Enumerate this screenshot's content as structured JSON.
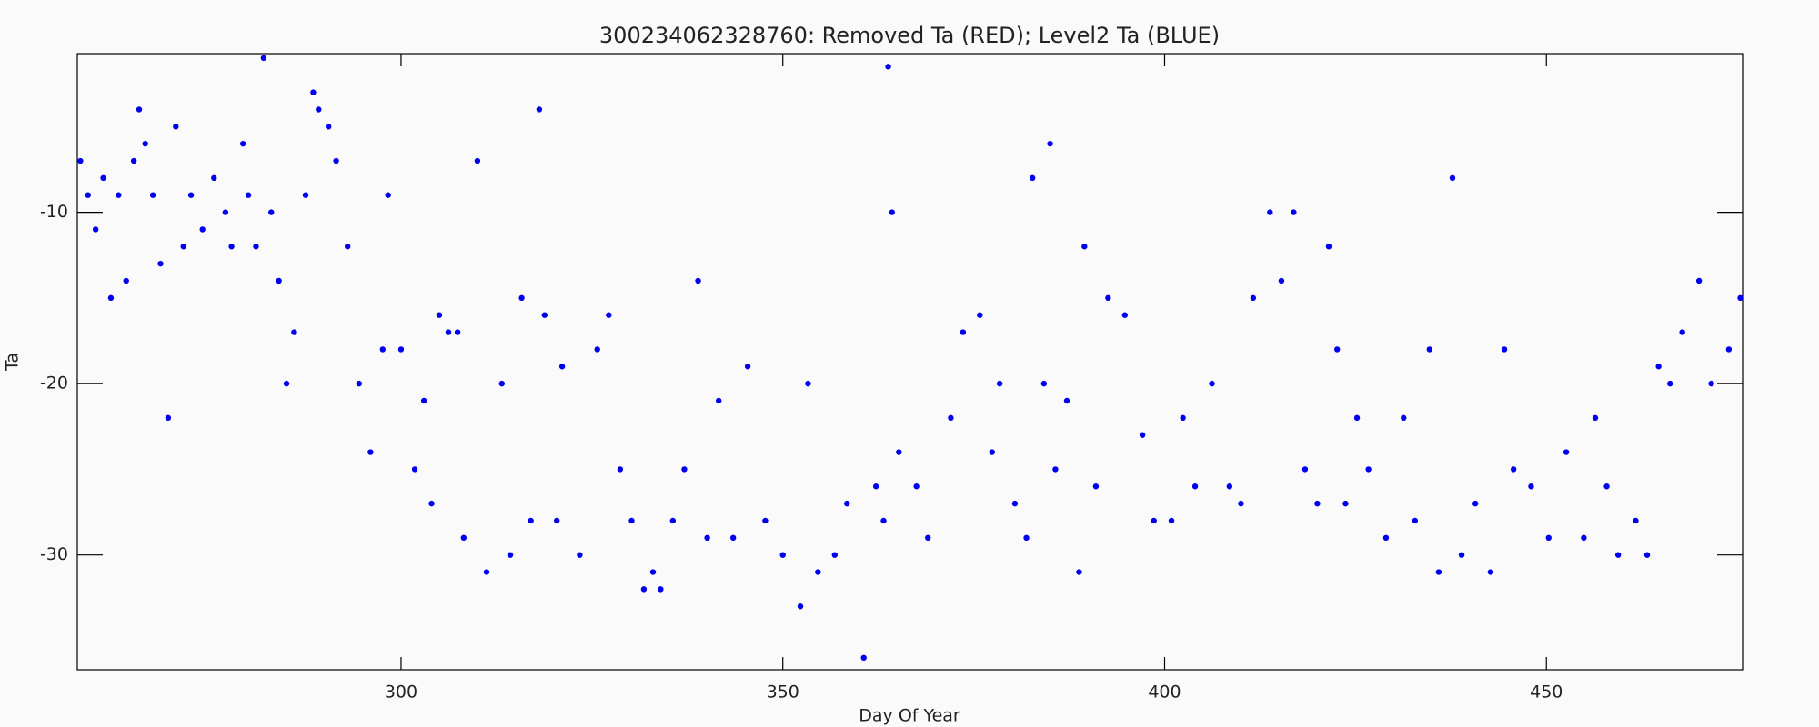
{
  "chart_data": {
    "type": "scatter",
    "title": "300234062328760: Removed Ta (RED); Level2 Ta (BLUE)",
    "x_label": "Day Of Year",
    "y_label": "Ta",
    "xlim": [
      257.6,
      475.7
    ],
    "ylim": [
      -36.7,
      -0.74
    ],
    "xticks": [
      300,
      350,
      400,
      450
    ],
    "yticks": [
      -30,
      -20,
      -10
    ],
    "x": [
      258,
      259,
      260,
      261,
      262,
      263,
      264,
      265,
      265.7,
      266.5,
      267.5,
      268.5,
      269.5,
      270.5,
      271.5,
      272.5,
      274,
      275.5,
      277,
      277.8,
      279.3,
      280,
      281,
      282,
      283,
      284,
      285,
      286,
      287.5,
      288.5,
      289.2,
      290.5,
      291.5,
      293,
      294.5,
      296,
      297.6,
      298.3,
      300,
      301.8,
      303,
      304,
      305,
      306.2,
      307.4,
      308.2,
      310,
      311.2,
      313.2,
      314.3,
      315.8,
      317,
      318.1,
      318.8,
      320.4,
      321.1,
      323.4,
      325.7,
      327.2,
      328.7,
      330.2,
      331.8,
      333,
      334,
      335.6,
      337.1,
      338.9,
      340.1,
      341.6,
      343.5,
      345.4,
      347.7,
      350,
      352.3,
      353.3,
      354.6,
      356.8,
      358.4,
      360.6,
      362.2,
      363.2,
      363.8,
      364.3,
      365.2,
      367.5,
      369,
      372,
      373.6,
      375.8,
      377.4,
      378.4,
      380.4,
      381.9,
      382.7,
      384.2,
      385,
      385.7,
      387.2,
      388.8,
      389.5,
      391,
      392.6,
      394.8,
      397.1,
      398.6,
      400.9,
      402.4,
      404,
      406.2,
      408.5,
      410,
      411.6,
      413.8,
      415.3,
      416.9,
      418.4,
      420,
      421.5,
      422.6,
      423.7,
      425.2,
      426.7,
      429,
      431.3,
      432.8,
      434.7,
      435.9,
      437.7,
      438.9,
      440.7,
      442.7,
      444.5,
      445.7,
      448,
      450.3,
      452.6,
      454.9,
      456.4,
      457.9,
      459.4,
      461.7,
      463.2,
      464.7,
      466.2,
      467.8,
      470,
      471.6,
      473.9,
      475.4
    ],
    "series": [
      {
        "color": "#0000ee",
        "values": [
          -7,
          -9,
          -11,
          -8,
          -15,
          -9,
          -14,
          -7,
          -4,
          -6,
          -9,
          -13,
          -22,
          -5,
          -12,
          -9,
          -11,
          -8,
          -10,
          -12,
          -6,
          -9,
          -12,
          -1,
          -10,
          -14,
          -20,
          -17,
          -9,
          -3,
          -4,
          -5,
          -7,
          -12,
          -20,
          -24,
          -18,
          -9,
          -18,
          -25,
          -21,
          -27,
          -16,
          -17,
          -17,
          -29,
          -7,
          -31,
          -20,
          -30,
          -15,
          -28,
          -4,
          -16,
          -28,
          -19,
          -30,
          -18,
          -16,
          -25,
          -28,
          -32,
          -31,
          -32,
          -28,
          -25,
          -14,
          -29,
          -21,
          -29,
          -19,
          -28,
          -30,
          -33,
          -20,
          -31,
          -30,
          -27,
          -36,
          -26,
          -28,
          -1.5,
          -10,
          -24,
          -26,
          -29,
          -22,
          -17,
          -16,
          -24,
          -20,
          -27,
          -29,
          -8,
          -20,
          -6,
          -25,
          -21,
          -31,
          -12,
          -26,
          -15,
          -16,
          -23,
          -28,
          -28,
          -22,
          -26,
          -20,
          -26,
          -27,
          -15,
          -10,
          -14,
          -10,
          -25,
          -27,
          -12,
          -18,
          -27,
          -22,
          -25,
          -29,
          -22,
          -28,
          -18,
          -31,
          -8,
          -30,
          -27,
          -31,
          -18,
          -25,
          -26,
          -29,
          -24,
          -29,
          -22,
          -26,
          -30,
          -28,
          -30,
          -19,
          -20,
          -17,
          -14,
          -20,
          -18,
          -15
        ]
      }
    ]
  }
}
